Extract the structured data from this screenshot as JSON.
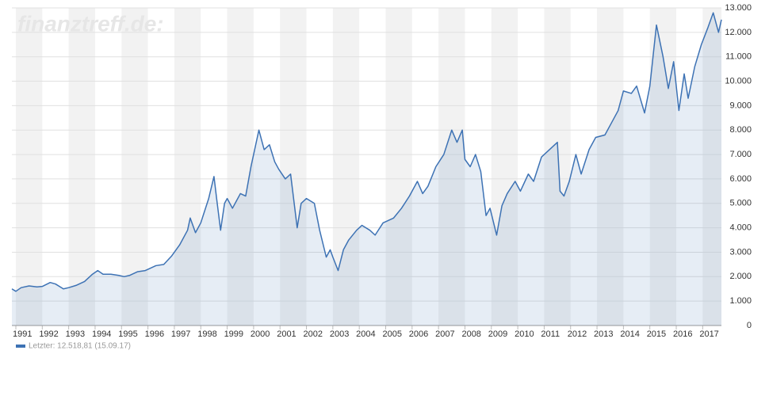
{
  "chart_data": {
    "type": "line",
    "watermark": "finanztreff.de:",
    "x": [
      1990.85,
      1991.0,
      1991.2,
      1991.5,
      1991.8,
      1992.0,
      1992.3,
      1992.5,
      1992.8,
      1993.0,
      1993.3,
      1993.6,
      1993.9,
      1994.1,
      1994.3,
      1994.6,
      1994.9,
      1995.1,
      1995.3,
      1995.6,
      1995.9,
      1996.0,
      1996.3,
      1996.6,
      1996.9,
      1997.2,
      1997.5,
      1997.6,
      1997.8,
      1998.0,
      1998.3,
      1998.5,
      1998.6,
      1998.75,
      1998.9,
      1999.0,
      1999.2,
      1999.5,
      1999.7,
      1999.9,
      2000.0,
      2000.2,
      2000.4,
      2000.6,
      2000.8,
      2000.95,
      2001.2,
      2001.4,
      2001.65,
      2001.8,
      2002.0,
      2002.3,
      2002.5,
      2002.75,
      2002.9,
      2003.0,
      2003.2,
      2003.4,
      2003.6,
      2003.9,
      2004.1,
      2004.4,
      2004.6,
      2004.9,
      2005.3,
      2005.6,
      2005.9,
      2006.2,
      2006.4,
      2006.6,
      2006.9,
      2007.2,
      2007.5,
      2007.7,
      2007.9,
      2008.0,
      2008.2,
      2008.4,
      2008.6,
      2008.8,
      2008.95,
      2009.2,
      2009.4,
      2009.6,
      2009.9,
      2010.1,
      2010.4,
      2010.6,
      2010.9,
      2011.2,
      2011.5,
      2011.6,
      2011.75,
      2011.95,
      2012.2,
      2012.4,
      2012.7,
      2012.95,
      2013.3,
      2013.5,
      2013.8,
      2014.0,
      2014.3,
      2014.5,
      2014.8,
      2015.0,
      2015.25,
      2015.5,
      2015.7,
      2015.9,
      2016.1,
      2016.3,
      2016.45,
      2016.7,
      2016.95,
      2017.2,
      2017.4,
      2017.6,
      2017.71
    ],
    "series": [
      {
        "name": "Letzter: 12.518,81 (15.09.17)",
        "color": "#3d72b4",
        "values": [
          1500,
          1400,
          1550,
          1620,
          1580,
          1600,
          1760,
          1700,
          1500,
          1550,
          1650,
          1800,
          2100,
          2250,
          2100,
          2100,
          2050,
          2000,
          2050,
          2200,
          2250,
          2300,
          2450,
          2500,
          2850,
          3300,
          3900,
          4400,
          3800,
          4200,
          5200,
          6100,
          5200,
          3900,
          5000,
          5200,
          4800,
          5400,
          5300,
          6500,
          7000,
          8000,
          7200,
          7400,
          6700,
          6400,
          6000,
          6200,
          4000,
          5000,
          5200,
          5000,
          3900,
          2800,
          3100,
          2800,
          2250,
          3100,
          3500,
          3900,
          4100,
          3900,
          3700,
          4200,
          4400,
          4800,
          5300,
          5900,
          5400,
          5700,
          6500,
          7000,
          8000,
          7500,
          8000,
          6800,
          6500,
          7000,
          6300,
          4500,
          4800,
          3700,
          4900,
          5400,
          5900,
          5500,
          6200,
          5900,
          6900,
          7200,
          7500,
          5500,
          5300,
          5900,
          7000,
          6200,
          7200,
          7700,
          7800,
          8200,
          8800,
          9600,
          9500,
          9800,
          8700,
          9800,
          12300,
          11000,
          9700,
          10800,
          8800,
          10300,
          9300,
          10600,
          11500,
          12200,
          12800,
          12000,
          12518.81
        ]
      }
    ],
    "xlim": [
      1990.85,
      2017.71
    ],
    "xticks": [
      1991,
      1992,
      1993,
      1994,
      1995,
      1996,
      1997,
      1998,
      1999,
      2000,
      2001,
      2002,
      2003,
      2004,
      2005,
      2006,
      2007,
      2008,
      2009,
      2010,
      2011,
      2012,
      2013,
      2014,
      2015,
      2016,
      2017
    ],
    "ylim": [
      0,
      13000
    ],
    "yticks": [
      0,
      {
        "value": 1000,
        "label": "1.000"
      },
      {
        "value": 2000,
        "label": "2.000"
      },
      {
        "value": 3000,
        "label": "3.000"
      },
      {
        "value": 4000,
        "label": "4.000"
      },
      {
        "value": 5000,
        "label": "5.000"
      },
      {
        "value": 6000,
        "label": "6.000"
      },
      {
        "value": 7000,
        "label": "7.000"
      },
      {
        "value": 8000,
        "label": "8.000"
      },
      {
        "value": 9000,
        "label": "9.000"
      },
      {
        "value": 10000,
        "label": "10.000"
      },
      {
        "value": 11000,
        "label": "11.000"
      },
      {
        "value": 12000,
        "label": "12.000"
      },
      {
        "value": 13000,
        "label": "13.000"
      }
    ],
    "grid": true
  }
}
